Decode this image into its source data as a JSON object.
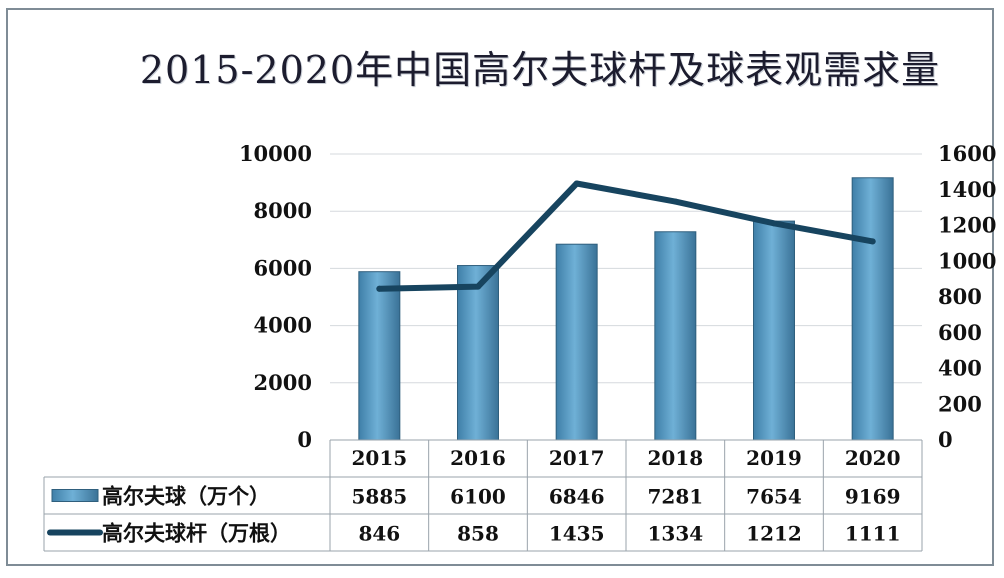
{
  "chart_data": {
    "type": "bar+line",
    "title": "2015-2020年中国高尔夫球杆及球表观需求量",
    "categories": [
      "2015",
      "2016",
      "2017",
      "2018",
      "2019",
      "2020"
    ],
    "series": [
      {
        "name": "高尔夫球（万个）",
        "type": "bar",
        "axis": "left",
        "values": [
          5885,
          6100,
          6846,
          7281,
          7654,
          9169
        ]
      },
      {
        "name": "高尔夫球杆（万根）",
        "type": "line",
        "axis": "right",
        "values": [
          846,
          858,
          1435,
          1334,
          1212,
          1111
        ]
      }
    ],
    "ylim_left": [
      0,
      10000
    ],
    "yticks_left": [
      "0",
      "2000",
      "4000",
      "6000",
      "8000",
      "10000"
    ],
    "ylim_right": [
      0,
      1600
    ],
    "yticks_right": [
      "0",
      "200",
      "400",
      "600",
      "800",
      "1000",
      "1200",
      "1400",
      "1600"
    ],
    "grid": true,
    "data_table": true,
    "colors": {
      "bar": "#5b9cc4",
      "bar_edge": "#2f5f7d",
      "line": "#17445f"
    }
  }
}
